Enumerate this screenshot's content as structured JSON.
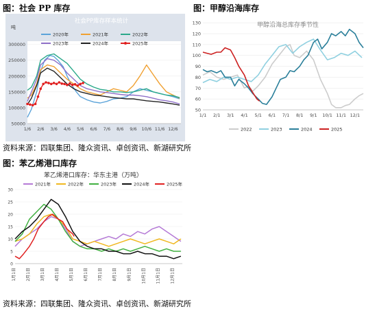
{
  "figures": {
    "pp": {
      "caption": "图：社会 PP 库存"
    },
    "methanol": {
      "caption": "图：甲醇沿海库存"
    },
    "styrene": {
      "caption": "图：苯乙烯港口库存"
    }
  },
  "sources": {
    "top": "资料来源：四联集团、隆众资讯、卓创资讯、新湖研究所",
    "bottom": "资料来源：四联集团、隆众资讯、卓创资讯、新湖研究所"
  },
  "chart_data": [
    {
      "type": "line",
      "title": "社会PP库存样本统计",
      "ylabel": "吨",
      "x_ticks": [
        "1/6",
        "2/6",
        "3/6",
        "4/6",
        "5/6",
        "6/6",
        "7/6",
        "8/6",
        "9/6",
        "10/6",
        "11/6",
        "12/6"
      ],
      "y_ticks": [
        "50000",
        "100000",
        "150000",
        "200000",
        "250000",
        "300000"
      ],
      "ylim": [
        50000,
        310000
      ],
      "xlim": [
        1,
        12.6
      ],
      "series": [
        {
          "name": "2020年",
          "color": "#5ba3d9",
          "dash": false,
          "x": [
            1,
            1.3,
            1.7,
            2,
            2.3,
            2.7,
            3,
            3.3,
            3.7,
            4,
            4.3,
            4.7,
            5,
            5.5,
            6,
            6.5,
            7,
            7.5,
            8,
            8.5,
            9,
            9.5,
            10,
            10.5,
            11,
            11.5,
            12,
            12.5
          ],
          "y": [
            70000,
            95000,
            150000,
            215000,
            250000,
            265000,
            262000,
            250000,
            230000,
            200000,
            175000,
            150000,
            135000,
            125000,
            118000,
            115000,
            120000,
            128000,
            130000,
            135000,
            150000,
            160000,
            155000,
            150000,
            145000,
            140000,
            135000,
            128000
          ]
        },
        {
          "name": "2021年",
          "color": "#f0a030",
          "dash": false,
          "x": [
            1,
            1.3,
            1.7,
            2,
            2.5,
            3,
            3.5,
            4,
            4.5,
            5,
            5.5,
            6,
            6.5,
            7,
            7.5,
            8,
            8.5,
            9,
            9.5,
            10,
            10.5,
            11,
            11.5,
            12,
            12.5
          ],
          "y": [
            130000,
            140000,
            175000,
            220000,
            235000,
            230000,
            210000,
            190000,
            175000,
            160000,
            150000,
            145000,
            140000,
            150000,
            160000,
            155000,
            150000,
            170000,
            200000,
            235000,
            205000,
            175000,
            150000,
            140000,
            130000
          ]
        },
        {
          "name": "2022年",
          "color": "#2aa88a",
          "dash": false,
          "x": [
            1,
            1.3,
            1.7,
            2,
            2.5,
            3,
            3.5,
            4,
            4.5,
            5,
            5.5,
            6,
            6.5,
            7,
            7.5,
            8,
            8.5,
            9,
            9.5,
            10,
            10.5,
            11,
            11.5,
            12,
            12.5
          ],
          "y": [
            155000,
            165000,
            200000,
            250000,
            265000,
            270000,
            255000,
            240000,
            215000,
            190000,
            175000,
            165000,
            158000,
            155000,
            150000,
            150000,
            148000,
            150000,
            155000,
            160000,
            150000,
            145000,
            140000,
            138000,
            132000
          ]
        },
        {
          "name": "2023年",
          "color": "#8e6fc8",
          "dash": false,
          "x": [
            1,
            1.3,
            1.7,
            2,
            2.5,
            3,
            3.5,
            4,
            4.5,
            5,
            5.5,
            6,
            6.5,
            7,
            7.5,
            8,
            8.5,
            9,
            9.5,
            10,
            10.5,
            11,
            11.5,
            12,
            12.5
          ],
          "y": [
            120000,
            150000,
            190000,
            235000,
            255000,
            250000,
            235000,
            210000,
            190000,
            170000,
            160000,
            155000,
            150000,
            148000,
            145000,
            142000,
            140000,
            140000,
            138000,
            135000,
            130000,
            125000,
            122000,
            118000,
            112000
          ]
        },
        {
          "name": "2024年",
          "color": "#222222",
          "dash": false,
          "x": [
            1,
            1.3,
            1.7,
            2,
            2.5,
            3,
            3.5,
            4,
            4.5,
            5,
            5.5,
            6,
            6.5,
            7,
            7.5,
            8,
            8.5,
            9,
            9.5,
            10,
            10.5,
            11,
            11.5,
            12,
            12.5
          ],
          "y": [
            110000,
            130000,
            170000,
            210000,
            225000,
            215000,
            195000,
            175000,
            160000,
            150000,
            145000,
            140000,
            138000,
            135000,
            132000,
            130000,
            128000,
            128000,
            125000,
            122000,
            120000,
            118000,
            115000,
            112000,
            108000
          ]
        },
        {
          "name": "2025年",
          "color": "#e02020",
          "dash": true,
          "x": [
            1,
            1.2,
            1.4,
            1.6,
            1.8,
            2,
            2.2,
            2.4,
            2.6,
            2.8,
            3,
            3.2,
            3.4,
            3.6,
            3.8,
            4,
            4.2,
            4.4,
            4.6,
            4.8,
            5,
            5.2
          ],
          "y": [
            112000,
            110000,
            108000,
            112000,
            135000,
            160000,
            175000,
            180000,
            178000,
            175000,
            178000,
            175000,
            180000,
            176000,
            175000,
            172000,
            176000,
            172000,
            174000,
            170000,
            175000,
            178000
          ]
        }
      ]
    },
    {
      "type": "line",
      "title": "甲醇沿海总库存季节性",
      "x_ticks": [
        "1/1",
        "2/1",
        "3/1",
        "4/1",
        "5/1",
        "6/1",
        "7/1",
        "8/1",
        "9/1",
        "10/1",
        "11/1",
        "12/1"
      ],
      "y_ticks": [
        "50",
        "60",
        "70",
        "80",
        "90",
        "100",
        "110",
        "120",
        "130"
      ],
      "ylim": [
        50,
        132
      ],
      "xlim": [
        1,
        12.6
      ],
      "series": [
        {
          "name": "2022",
          "color": "#cccccc",
          "x": [
            1,
            1.5,
            2,
            2.5,
            3,
            3.5,
            4,
            4.3,
            4.6,
            5,
            5.5,
            6,
            6.5,
            7,
            7.3,
            7.6,
            8,
            8.5,
            9,
            9.5,
            10,
            10.3,
            10.6,
            11,
            11.3,
            11.6,
            12,
            12.3,
            12.6
          ],
          "y": [
            82,
            85,
            80,
            78,
            80,
            82,
            70,
            72,
            67,
            72,
            80,
            92,
            100,
            108,
            110,
            100,
            98,
            104,
            96,
            78,
            65,
            55,
            52,
            52,
            54,
            55,
            60,
            63,
            65
          ]
        },
        {
          "name": "2023",
          "color": "#8fd0e0",
          "x": [
            1,
            1.5,
            2,
            2.5,
            3,
            3.5,
            4,
            4.5,
            5,
            5.5,
            6,
            6.5,
            7,
            7.5,
            8,
            8.5,
            9,
            9.5,
            10,
            10.5,
            11,
            11.5,
            12,
            12.5
          ],
          "y": [
            75,
            78,
            76,
            80,
            78,
            80,
            78,
            76,
            82,
            92,
            100,
            108,
            110,
            102,
            108,
            112,
            115,
            105,
            96,
            98,
            102,
            100,
            104,
            98
          ]
        },
        {
          "name": "2024",
          "color": "#2a7f9a",
          "x": [
            1,
            1.3,
            1.6,
            2,
            2.3,
            2.6,
            3,
            3.3,
            3.6,
            4,
            4.3,
            4.6,
            5,
            5.3,
            5.6,
            6,
            6.3,
            6.6,
            7,
            7.3,
            7.6,
            8,
            8.3,
            8.6,
            9,
            9.3,
            9.6,
            10,
            10.3,
            10.6,
            11,
            11.3,
            11.6,
            12,
            12.3,
            12.6
          ],
          "y": [
            87,
            85,
            86,
            84,
            86,
            80,
            80,
            72,
            78,
            74,
            70,
            65,
            60,
            56,
            55,
            62,
            70,
            78,
            80,
            86,
            85,
            90,
            96,
            100,
            112,
            115,
            106,
            112,
            120,
            118,
            122,
            118,
            124,
            120,
            112,
            107
          ]
        },
        {
          "name": "2025",
          "color": "#cc2020",
          "x": [
            1,
            1.3,
            1.6,
            2,
            2.3,
            2.6,
            3,
            3.3,
            3.6,
            4,
            4.3,
            4.6,
            4.9,
            5.1
          ],
          "y": [
            103,
            102,
            101,
            103,
            103,
            107,
            105,
            98,
            90,
            82,
            72,
            66,
            60,
            58
          ]
        }
      ]
    },
    {
      "type": "line",
      "title": "苯乙烯港口库存：华东主港（万吨）",
      "x_ticks": [
        "1月1日",
        "2月1日",
        "3月1日",
        "4月1日",
        "5月1日",
        "6月1日",
        "7月1日",
        "8月1日",
        "9月1日",
        "10月1日",
        "11月1日",
        "12月1日"
      ],
      "y_ticks": [
        "0",
        "5",
        "10",
        "15",
        "20",
        "25",
        "30"
      ],
      "ylim": [
        0,
        30
      ],
      "xlim": [
        1,
        12.6
      ],
      "series": [
        {
          "name": "2021年",
          "color": "#b57ad6",
          "x": [
            1,
            1.5,
            2,
            2.5,
            3,
            3.5,
            4,
            4.5,
            5,
            5.5,
            6,
            6.5,
            7,
            7.5,
            8,
            8.5,
            9,
            9.5,
            10,
            10.5,
            11,
            11.5,
            12,
            12.5
          ],
          "y": [
            7,
            10,
            12,
            14,
            17,
            19,
            18,
            14,
            9,
            7,
            8,
            9,
            10,
            11,
            10,
            12,
            11,
            13,
            12,
            14,
            15,
            13,
            11,
            9
          ]
        },
        {
          "name": "2022年",
          "color": "#f0b820",
          "x": [
            1,
            1.5,
            2,
            2.5,
            3,
            3.5,
            4,
            4.5,
            5,
            5.5,
            6,
            6.5,
            7,
            7.5,
            8,
            8.5,
            9,
            9.5,
            10,
            10.5,
            11,
            11.5,
            12,
            12.5
          ],
          "y": [
            9,
            10,
            12,
            16,
            19,
            20,
            18,
            15,
            10,
            9,
            8,
            9,
            8,
            7,
            8,
            9,
            10,
            9,
            8,
            9,
            10,
            9,
            8,
            10
          ]
        },
        {
          "name": "2023年",
          "color": "#40b040",
          "x": [
            1,
            1.5,
            2,
            2.5,
            3,
            3.5,
            4,
            4.5,
            5,
            5.5,
            6,
            6.5,
            7,
            7.5,
            8,
            8.5,
            9,
            9.5,
            10,
            10.5,
            11,
            11.5,
            12,
            12.5
          ],
          "y": [
            9,
            12,
            18,
            21,
            24,
            22,
            18,
            13,
            9,
            7,
            6,
            6,
            5,
            6,
            5,
            6,
            5,
            6,
            7,
            6,
            5,
            6,
            5,
            5
          ]
        },
        {
          "name": "2024年",
          "color": "#111111",
          "x": [
            1,
            1.5,
            2,
            2.5,
            3,
            3.5,
            4,
            4.5,
            5,
            5.5,
            6,
            6.5,
            7,
            7.5,
            8,
            8.5,
            9,
            9.5,
            10,
            10.5,
            11,
            11.5,
            12,
            12.5
          ],
          "y": [
            10,
            13,
            15,
            18,
            22,
            26,
            24,
            19,
            13,
            9,
            7,
            6,
            6,
            5,
            5,
            4,
            4,
            5,
            4,
            4,
            3,
            3,
            2,
            3
          ]
        },
        {
          "name": "2025年",
          "color": "#e02020",
          "x": [
            1,
            1.3,
            1.6,
            2,
            2.3,
            2.6,
            3,
            3.3,
            3.6,
            4,
            4.3,
            4.6,
            5,
            5.1
          ],
          "y": [
            3,
            2,
            4,
            7,
            10,
            14,
            17,
            19,
            20,
            18,
            17,
            14,
            12,
            11
          ]
        }
      ]
    }
  ]
}
